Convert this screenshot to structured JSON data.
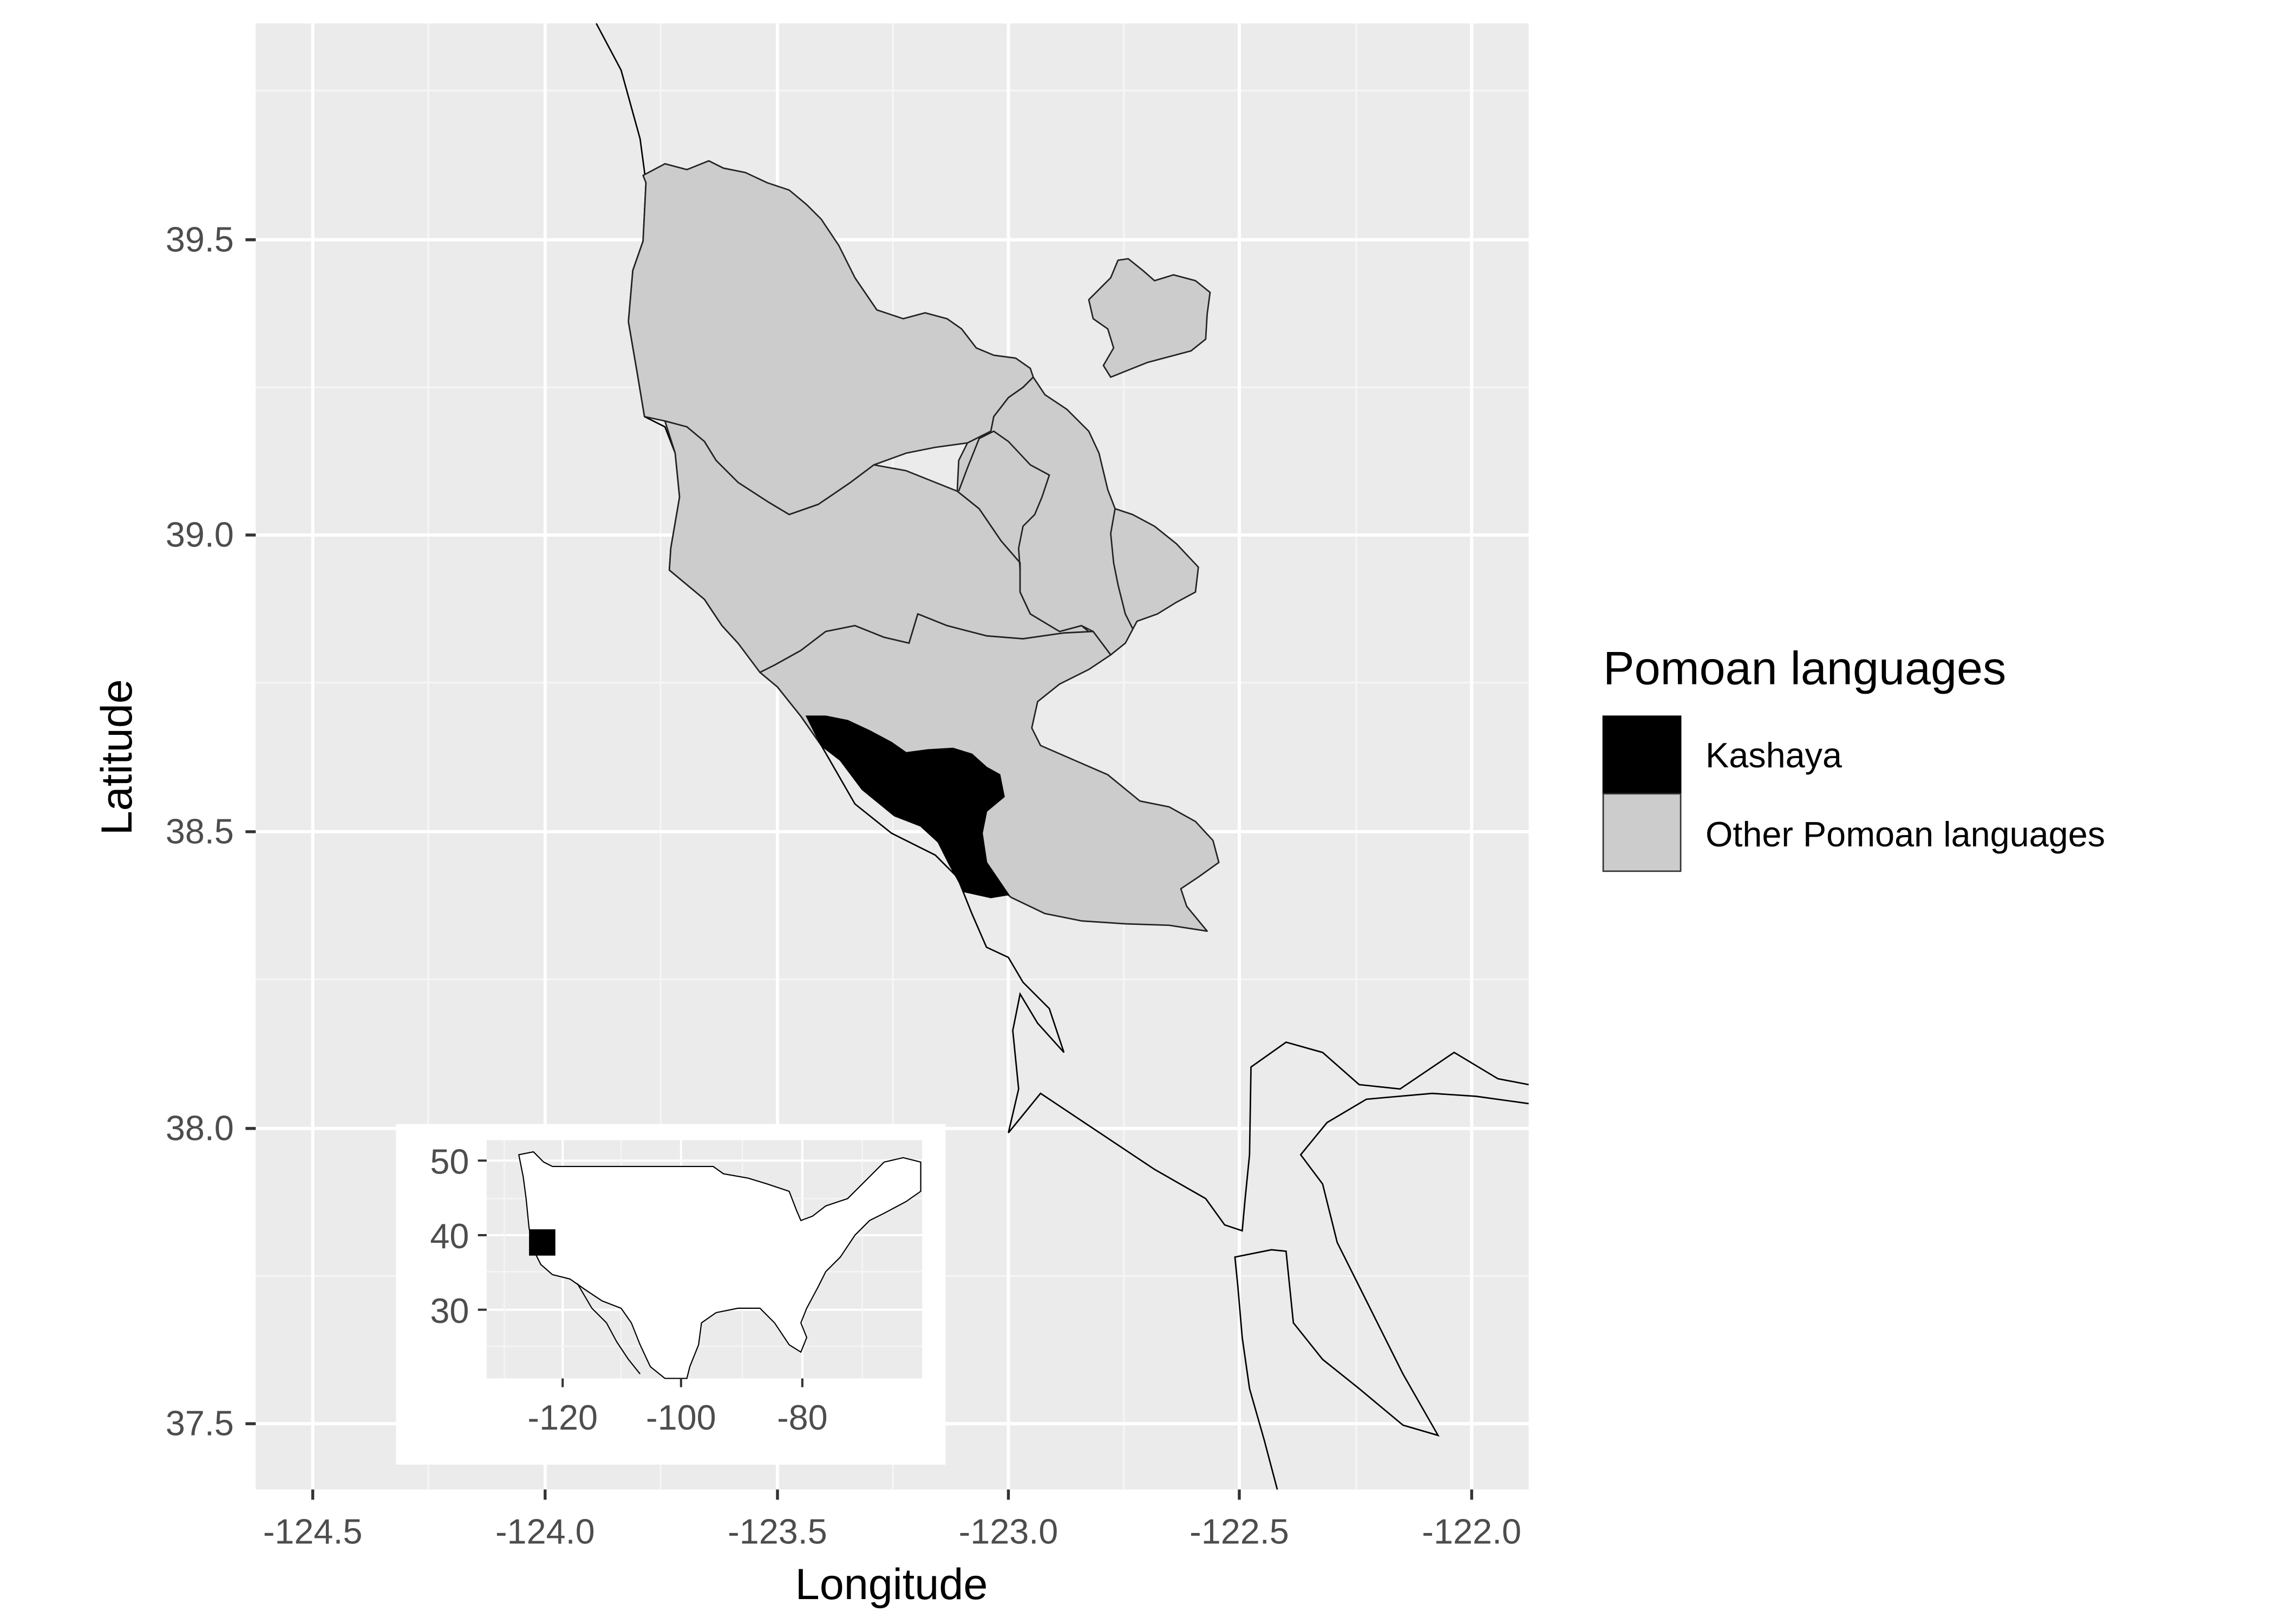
{
  "axes": {
    "x_title": "Longitude",
    "y_title": "Latitude",
    "x_ticks": [
      "-124.5",
      "-124.0",
      "-123.5",
      "-123.0",
      "-122.5",
      "-122.0"
    ],
    "y_ticks": [
      "39.5",
      "39.0",
      "38.5",
      "38.0",
      "37.5"
    ]
  },
  "legend": {
    "title": "Pomoan languages",
    "items": [
      {
        "label": "Kashaya",
        "color": "#000000"
      },
      {
        "label": "Other Pomoan languages",
        "color": "#cccccc"
      }
    ]
  },
  "inset": {
    "x_ticks": [
      "-120",
      "-100",
      "-80"
    ],
    "y_ticks": [
      "50",
      "40",
      "30"
    ]
  },
  "colors": {
    "panel_background": "#ebebeb",
    "grid": "#ffffff",
    "kashaya": "#000000",
    "other_pomoan": "#cccccc"
  }
}
